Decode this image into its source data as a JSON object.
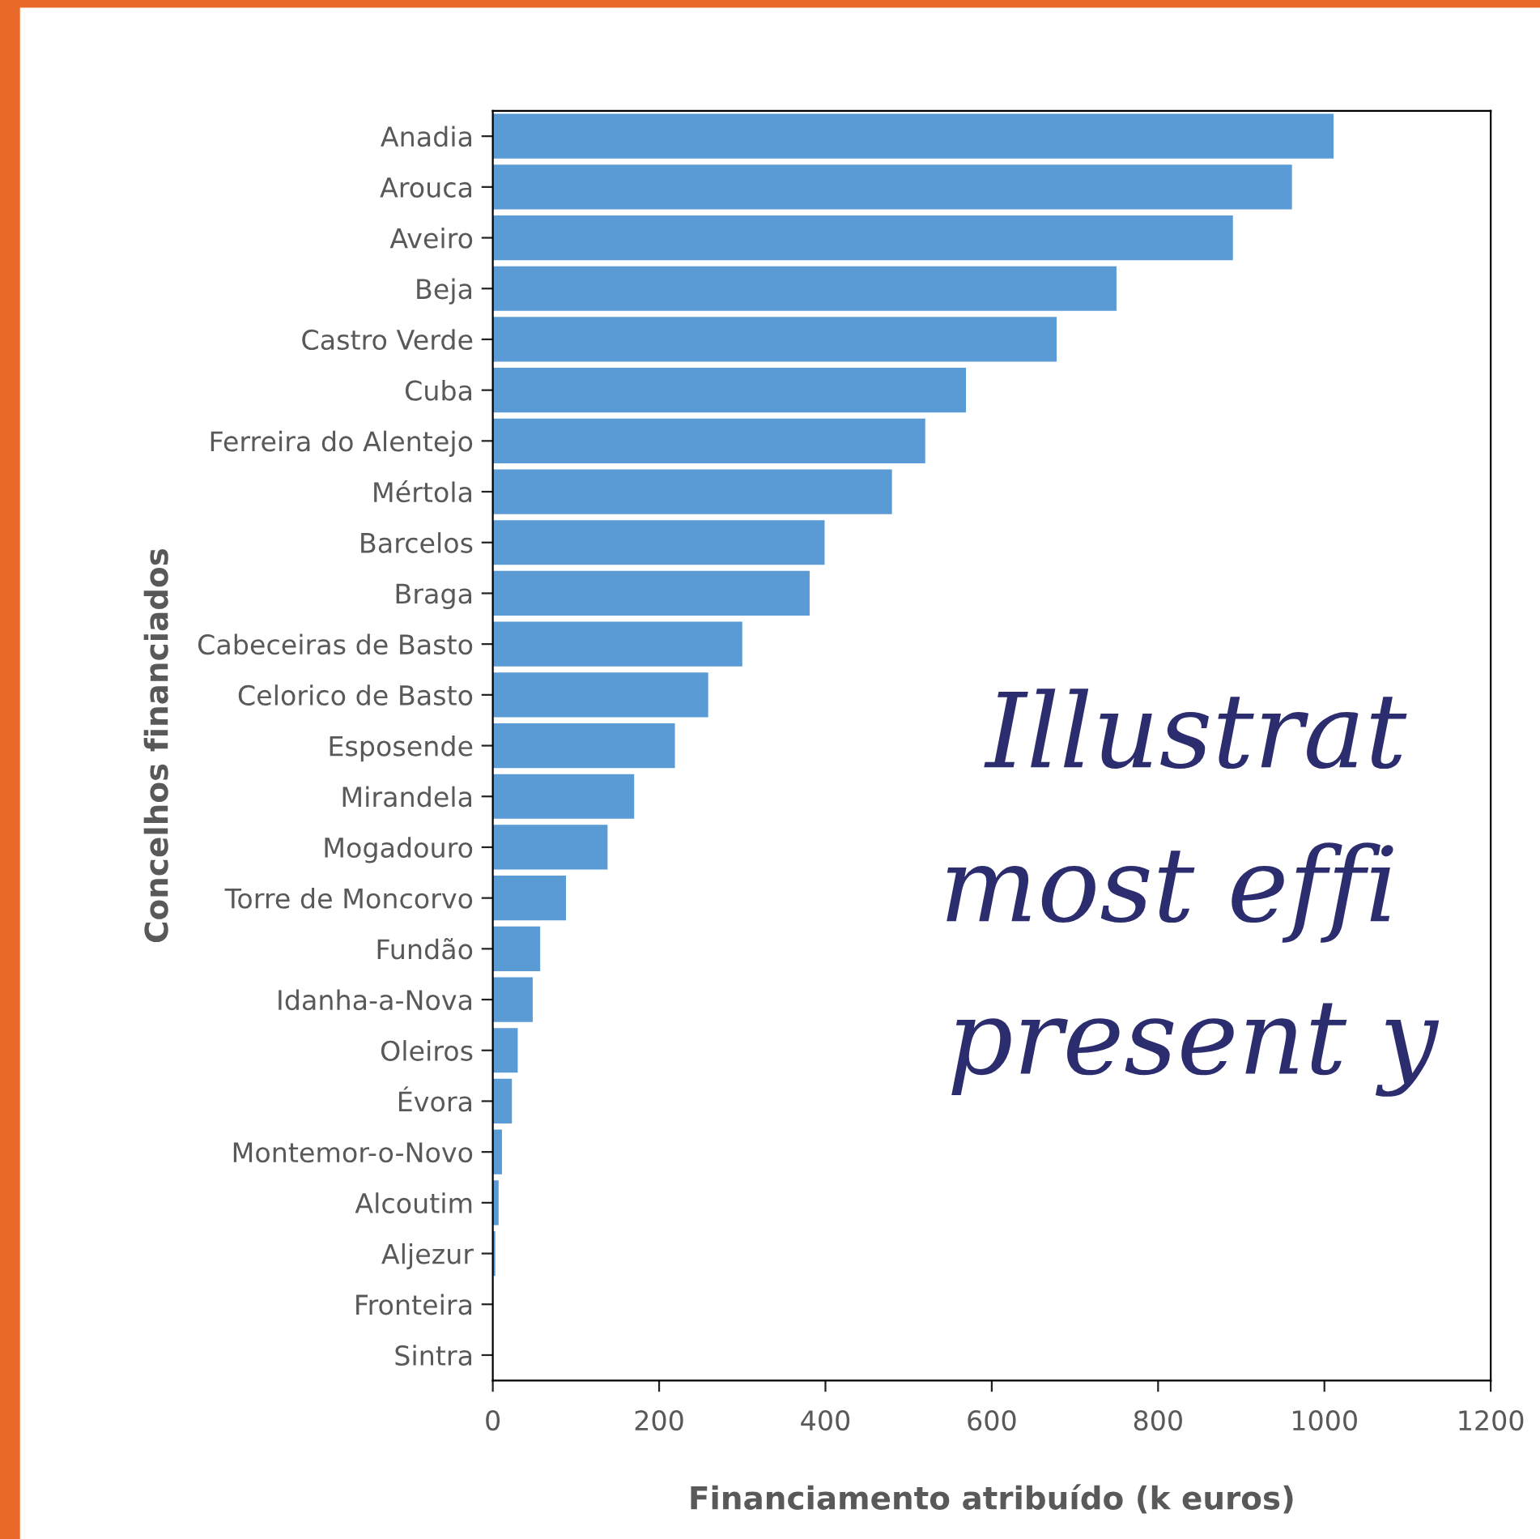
{
  "chart_data": {
    "type": "bar",
    "orientation": "horizontal",
    "xlabel": "Financiamento atribuído (k euros)",
    "ylabel": "Concelhos financiados",
    "categories": [
      "Anadia",
      "Arouca",
      "Aveiro",
      "Beja",
      "Castro Verde",
      "Cuba",
      "Ferreira do Alentejo",
      "Mértola",
      "Barcelos",
      "Braga",
      "Cabeceiras de Basto",
      "Celorico de Basto",
      "Esposende",
      "Mirandela",
      "Mogadouro",
      "Torre de Moncorvo",
      "Fundão",
      "Idanha-a-Nova",
      "Oleiros",
      "Évora",
      "Montemor-o-Novo",
      "Alcoutim",
      "Aljezur",
      "Fronteira",
      "Sintra"
    ],
    "values": [
      1011,
      961,
      890,
      750,
      678,
      569,
      520,
      480,
      399,
      381,
      300,
      259,
      219,
      170,
      138,
      88,
      57,
      48,
      30,
      23,
      11,
      7,
      3,
      0,
      0
    ],
    "color": "#5b9bd5",
    "xlim": [
      0,
      1200
    ],
    "xticks": [
      0,
      200,
      400,
      600,
      800,
      1000,
      1200
    ],
    "grid": false,
    "legend": false,
    "annotations": [
      "Illustrat",
      "most effi",
      "present y"
    ]
  }
}
